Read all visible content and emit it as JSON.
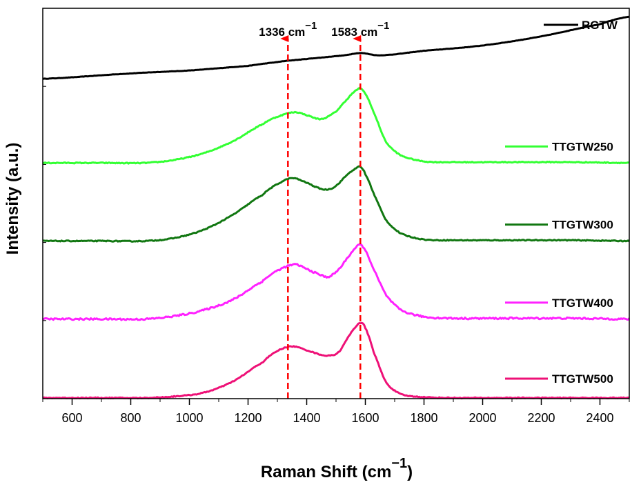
{
  "chart_data": {
    "type": "line",
    "title": "",
    "xlabel": "Raman Shift",
    "xlabel_unit_base": "cm",
    "xlabel_unit_exp": "−1",
    "ylabel": "Intensity (a.u.)",
    "xlim": [
      500,
      2500
    ],
    "xticks": [
      600,
      800,
      1000,
      1200,
      1400,
      1600,
      1800,
      2000,
      2200,
      2400
    ],
    "y_ticks_shown": false,
    "stacked_panels": 5,
    "legend_placement": "right of each panel",
    "annotations": [
      {
        "base": "1336 cm",
        "exp": "−1",
        "x": 1336,
        "style": "dashed-red-arrow"
      },
      {
        "base": "1583 cm",
        "exp": "−1",
        "x": 1583,
        "style": "dashed-red-arrow"
      }
    ],
    "series": [
      {
        "name": "RGTW",
        "color": "#000000",
        "panel": 0,
        "x": [
          500,
          800,
          1000,
          1200,
          1300,
          1336,
          1450,
          1530,
          1583,
          1650,
          1800,
          2000,
          2200,
          2400,
          2500
        ],
        "y": [
          0.1,
          0.17,
          0.21,
          0.27,
          0.32,
          0.34,
          0.38,
          0.41,
          0.44,
          0.41,
          0.47,
          0.54,
          0.66,
          0.82,
          0.92
        ]
      },
      {
        "name": "TTGTW250",
        "color": "#33FF33",
        "panel": 1,
        "x": [
          500,
          700,
          850,
          950,
          1050,
          1150,
          1250,
          1300,
          1360,
          1400,
          1450,
          1500,
          1540,
          1570,
          1583,
          1600,
          1630,
          1670,
          1720,
          1800,
          1900,
          2100,
          2300,
          2500
        ],
        "y": [
          0.02,
          0.02,
          0.02,
          0.06,
          0.15,
          0.31,
          0.53,
          0.63,
          0.69,
          0.65,
          0.6,
          0.7,
          0.87,
          0.98,
          1.0,
          0.93,
          0.67,
          0.3,
          0.12,
          0.04,
          0.03,
          0.03,
          0.03,
          0.02
        ]
      },
      {
        "name": "TTGTW300",
        "color": "#117711",
        "panel": 2,
        "x": [
          500,
          700,
          850,
          950,
          1050,
          1150,
          1250,
          1300,
          1350,
          1400,
          1440,
          1470,
          1500,
          1540,
          1570,
          1583,
          1600,
          1630,
          1670,
          1720,
          1800,
          1900,
          2100,
          2300,
          2500
        ],
        "y": [
          0.02,
          0.02,
          0.02,
          0.06,
          0.17,
          0.37,
          0.63,
          0.77,
          0.85,
          0.79,
          0.72,
          0.7,
          0.75,
          0.9,
          0.98,
          1.0,
          0.9,
          0.63,
          0.3,
          0.12,
          0.04,
          0.03,
          0.03,
          0.03,
          0.02
        ]
      },
      {
        "name": "TTGTW400",
        "color": "#FF22FF",
        "panel": 3,
        "x": [
          500,
          700,
          850,
          950,
          1050,
          1150,
          1250,
          1300,
          1360,
          1400,
          1450,
          1475,
          1510,
          1550,
          1570,
          1583,
          1600,
          1630,
          1670,
          1720,
          1800,
          1900,
          2100,
          2300,
          2500
        ],
        "y": [
          0.02,
          0.02,
          0.02,
          0.06,
          0.14,
          0.28,
          0.52,
          0.66,
          0.74,
          0.68,
          0.6,
          0.58,
          0.68,
          0.88,
          0.97,
          1.0,
          0.92,
          0.66,
          0.34,
          0.14,
          0.05,
          0.03,
          0.03,
          0.03,
          0.02
        ]
      },
      {
        "name": "TTGTW500",
        "color": "#EE1177",
        "panel": 4,
        "x": [
          500,
          700,
          850,
          950,
          1050,
          1150,
          1250,
          1300,
          1350,
          1400,
          1450,
          1480,
          1510,
          1545,
          1570,
          1583,
          1600,
          1630,
          1670,
          1720,
          1800,
          1900,
          2100,
          2300,
          2500
        ],
        "y": [
          0.01,
          0.01,
          0.01,
          0.03,
          0.08,
          0.23,
          0.48,
          0.63,
          0.69,
          0.64,
          0.58,
          0.57,
          0.62,
          0.83,
          0.96,
          1.0,
          0.93,
          0.6,
          0.22,
          0.06,
          0.02,
          0.01,
          0.01,
          0.01,
          0.01
        ]
      }
    ]
  },
  "colors": {
    "arrow": "#FF0000",
    "frame": "#000000"
  }
}
